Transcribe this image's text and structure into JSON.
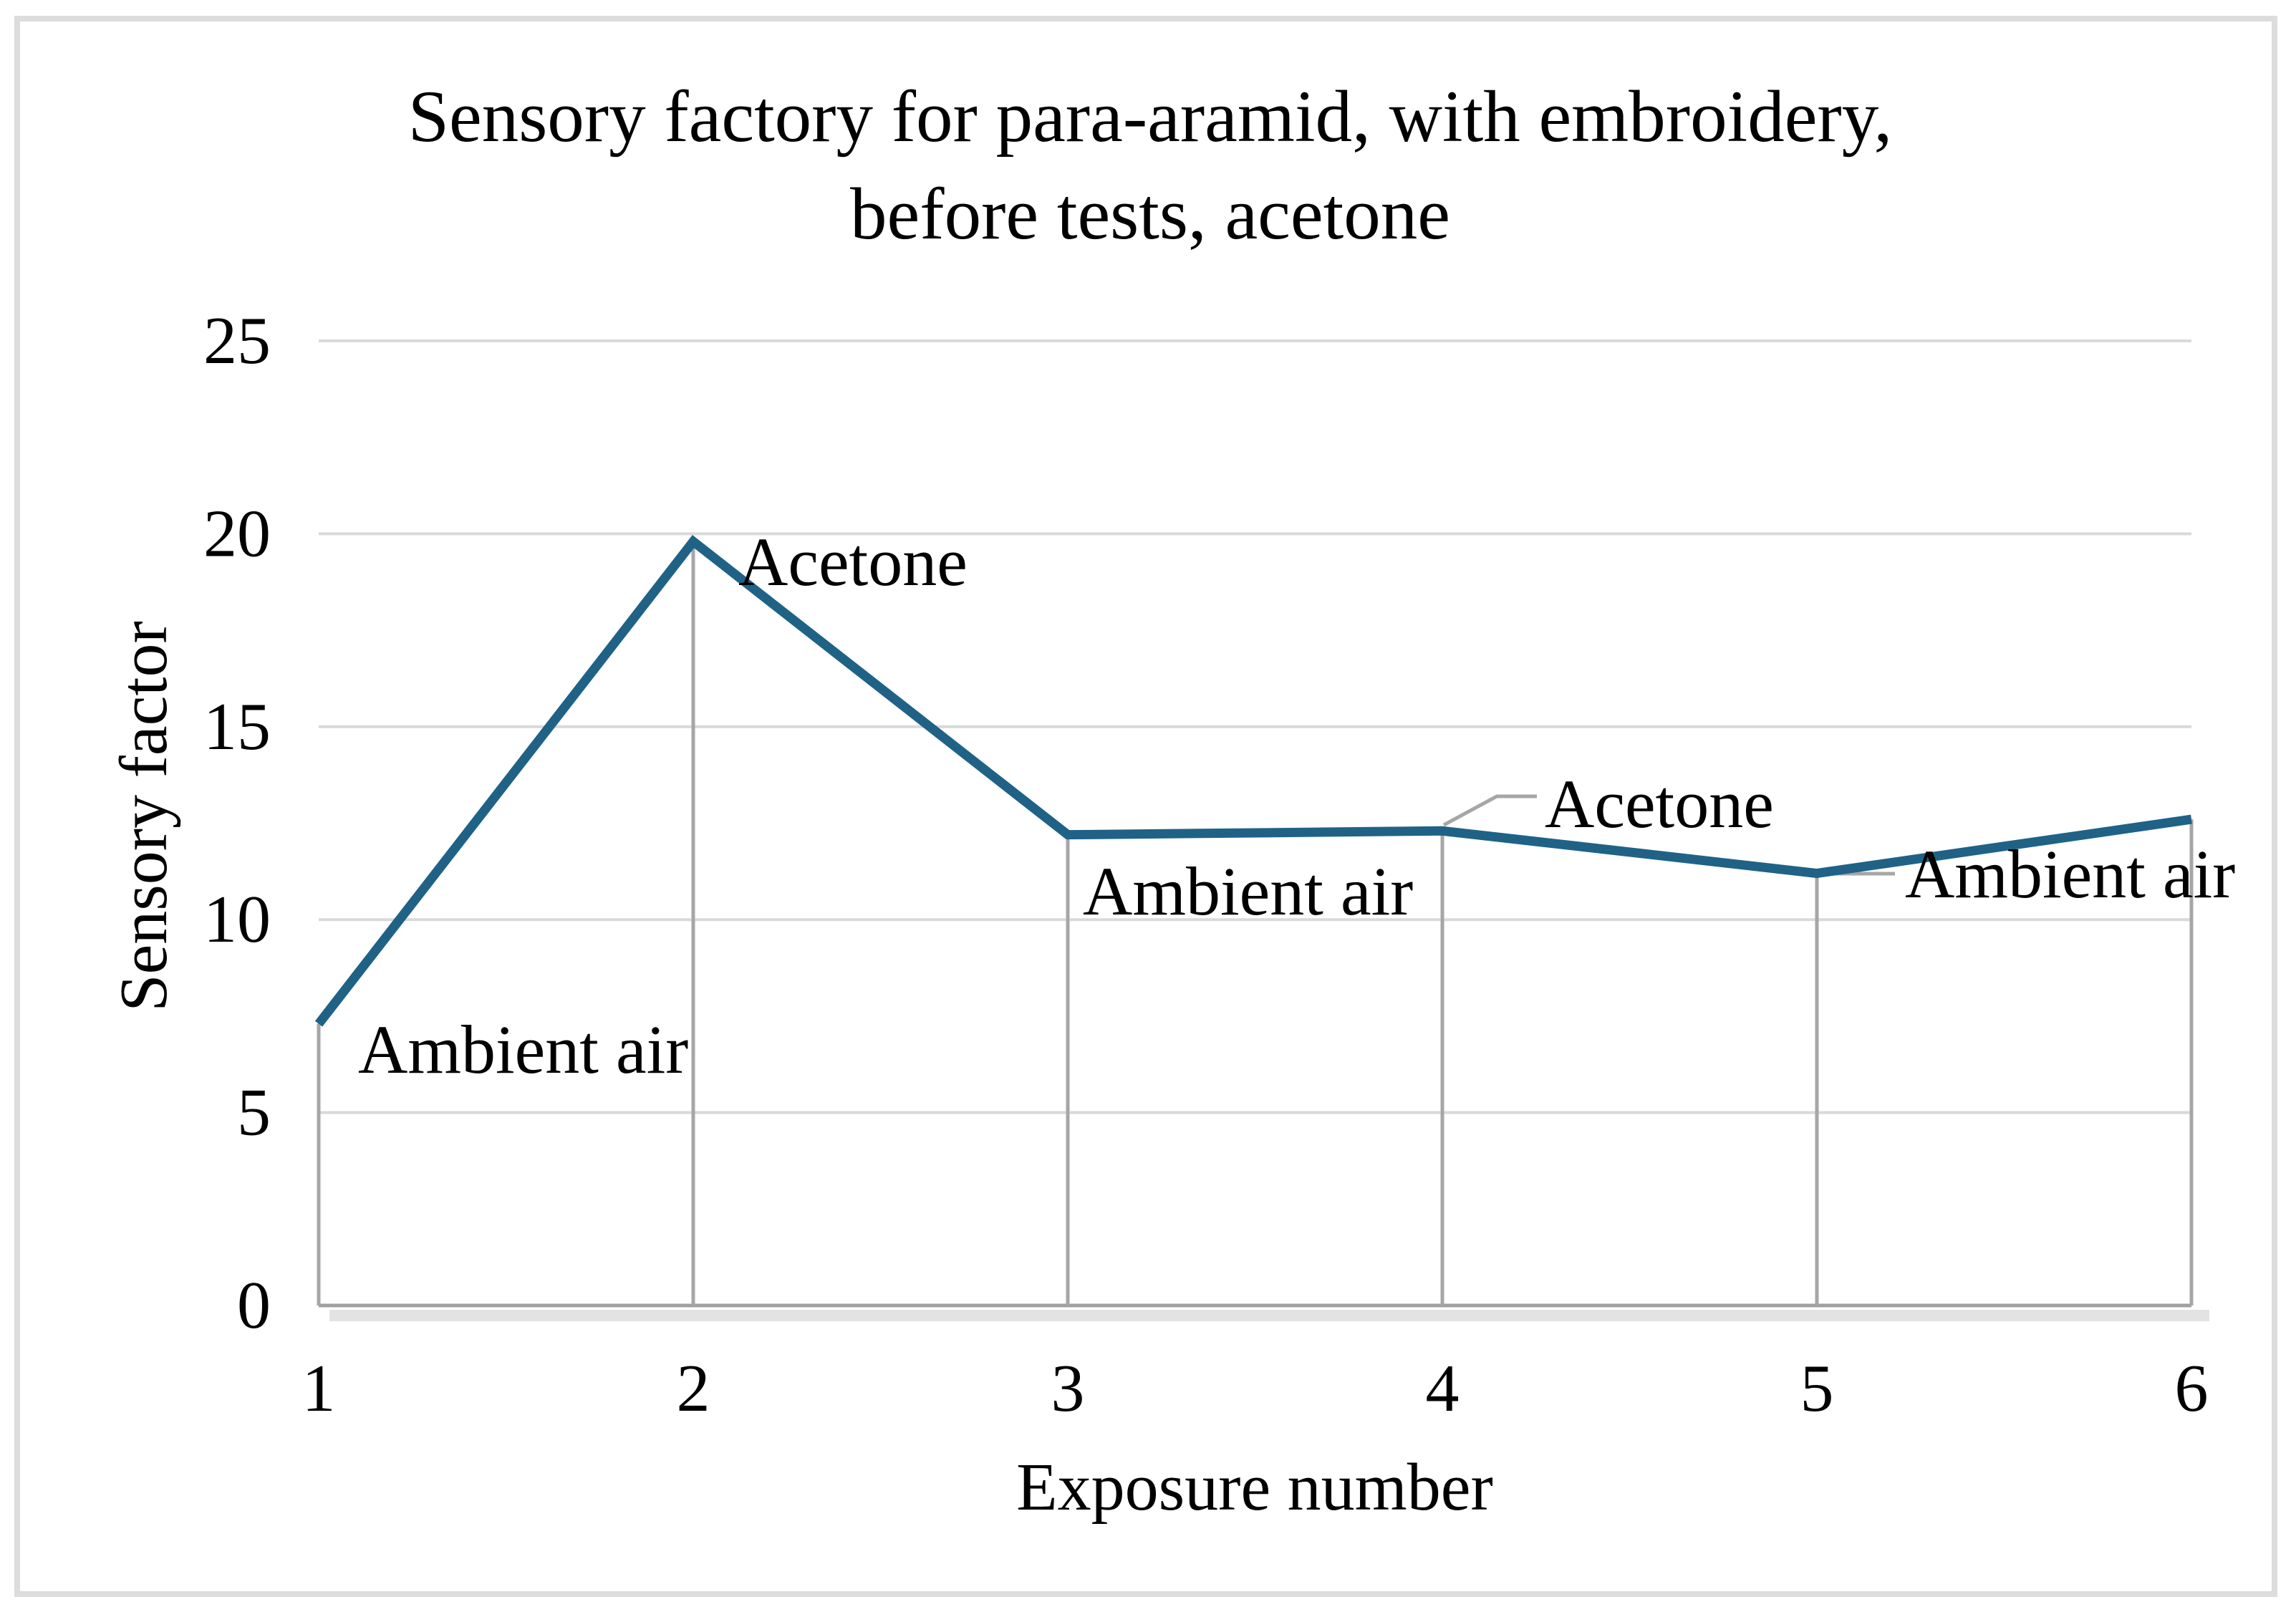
{
  "figure": {
    "background": "#ffffff",
    "border_color": "#dcdcdc"
  },
  "chart_data": {
    "type": "line",
    "title": "Sensory factory for para-aramid, with embroidery, before tests, acetone",
    "title_lines": [
      "Sensory factory for para-aramid, with embroidery,",
      "before tests, acetone"
    ],
    "xlabel": "Exposure number",
    "ylabel": "Sensory factor",
    "categories": [
      "1",
      "2",
      "3",
      "4",
      "5",
      "6"
    ],
    "x": [
      1,
      2,
      3,
      4,
      5,
      6
    ],
    "series": [
      {
        "name": "Sensory factor",
        "values": [
          7.3,
          19.8,
          12.2,
          12.3,
          11.2,
          12.6
        ],
        "color": "#1f6286"
      }
    ],
    "ylim": [
      0,
      25
    ],
    "yticks": [
      0,
      5,
      10,
      15,
      20,
      25
    ],
    "grid": "horizontal-only",
    "legend": "none",
    "drop_lines_at_points": true,
    "annotations": [
      {
        "text": "Ambient air",
        "near_point": 1
      },
      {
        "text": "Acetone",
        "near_point": 2
      },
      {
        "text": "Ambient air",
        "near_point": 3
      },
      {
        "text": "Acetone",
        "near_point": 4,
        "has_leader_line": true
      },
      {
        "text": "Ambient air",
        "near_point": 5,
        "has_leader_line": true
      }
    ],
    "colors": {
      "line": "#1f6286",
      "gridline": "#d9d9d9",
      "drop_line": "#a6a6a6",
      "axis_line": "#a0a0a0",
      "axis_shadow": "#e3e3e3",
      "text": "#000000"
    }
  }
}
